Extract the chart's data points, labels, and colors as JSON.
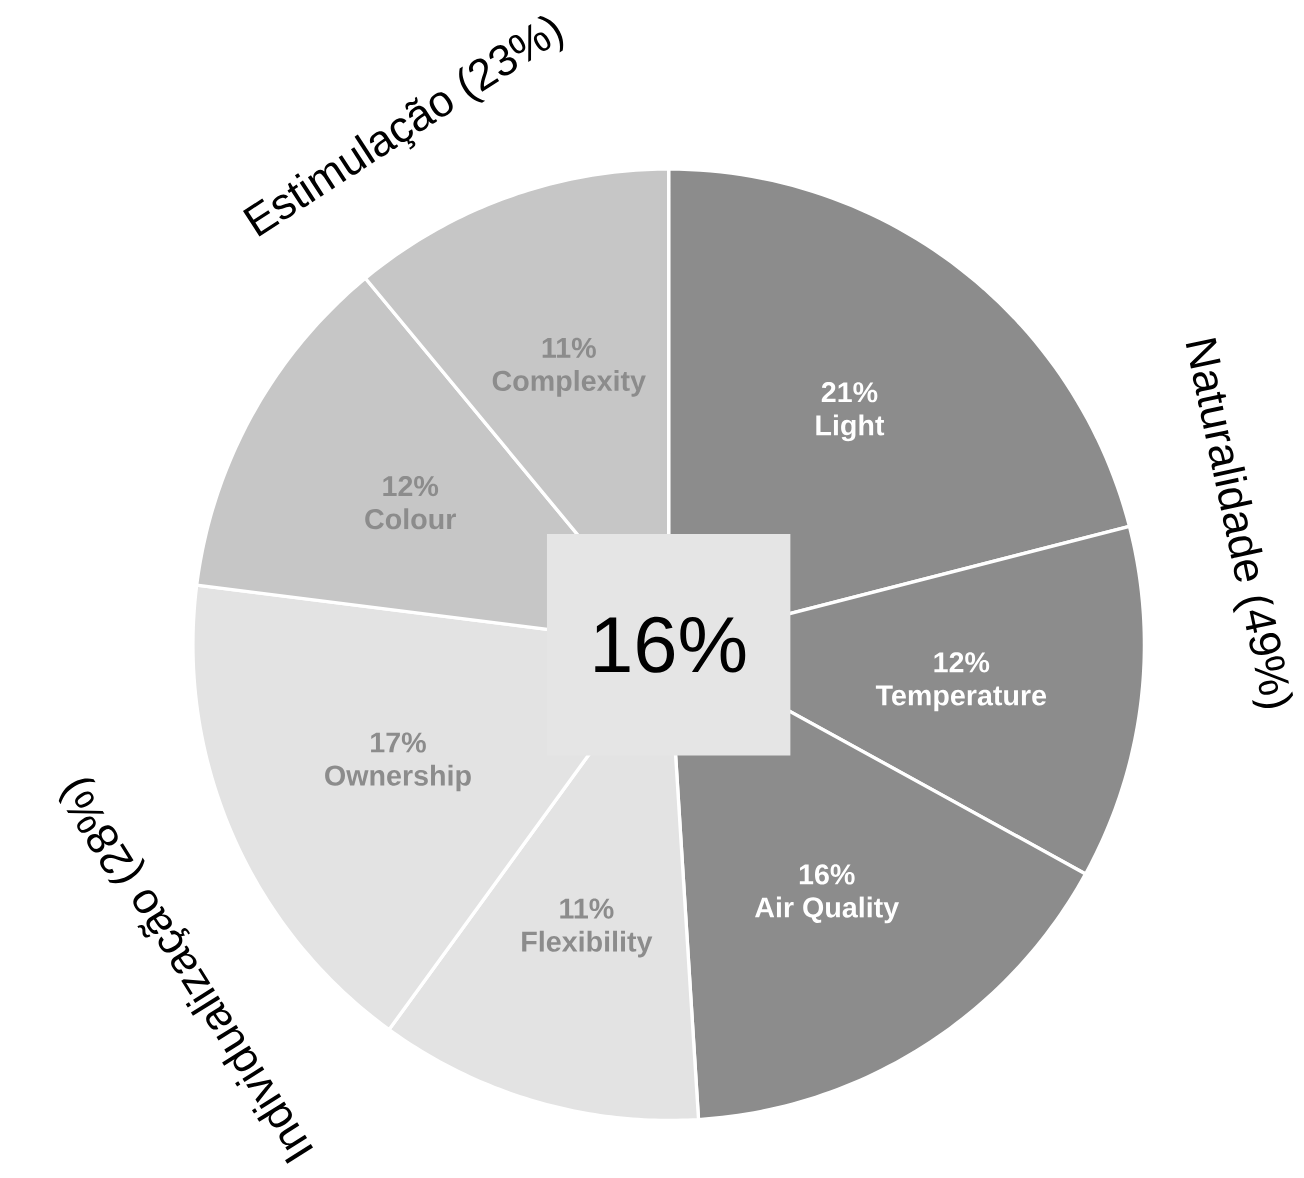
{
  "chart_data": {
    "type": "pie",
    "categories": [
      "Light",
      "Temperature",
      "Air Quality",
      "Flexibility",
      "Ownership",
      "Colour",
      "Complexity"
    ],
    "values": [
      21,
      12,
      16,
      11,
      17,
      12,
      11
    ],
    "value_labels": [
      "21%",
      "12%",
      "16%",
      "11%",
      "17%",
      "12%",
      "11%"
    ],
    "colors": [
      "#8c8c8c",
      "#8c8c8c",
      "#8c8c8c",
      "#e3e3e3",
      "#e3e3e3",
      "#c6c6c6",
      "#c6c6c6"
    ],
    "annotations": [
      "16%",
      "Estimulação (23%)",
      "Naturalidade (49%)",
      "Individualização (28%)"
    ]
  }
}
